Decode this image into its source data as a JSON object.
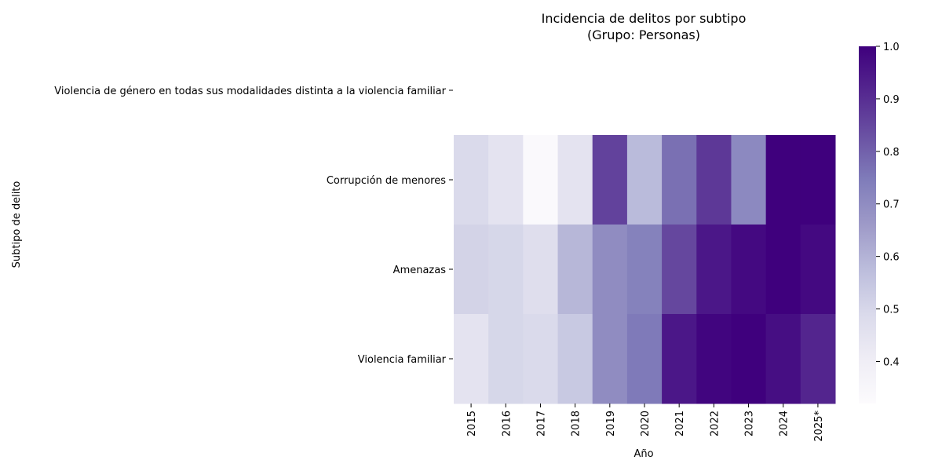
{
  "chart_data": {
    "type": "heatmap",
    "title": "Incidencia de delitos por subtipo",
    "subtitle": "(Grupo: Personas)",
    "xlabel": "Año",
    "ylabel": "Subtipo de delito",
    "x_categories": [
      "2015",
      "2016",
      "2017",
      "2018",
      "2019",
      "2020",
      "2021",
      "2022",
      "2023",
      "2024",
      "2025*"
    ],
    "y_categories": [
      "Violencia de género en todas sus modalidades distinta a la violencia familiar",
      "Corrupción de menores",
      "Amenazas",
      "Violencia familiar"
    ],
    "values": [
      [
        null,
        null,
        null,
        null,
        null,
        null,
        null,
        null,
        null,
        null,
        null
      ],
      [
        0.49,
        0.45,
        0.33,
        0.45,
        0.86,
        0.58,
        0.77,
        0.88,
        0.71,
        1.0,
        1.0
      ],
      [
        0.51,
        0.5,
        0.47,
        0.59,
        0.7,
        0.73,
        0.85,
        0.95,
        0.98,
        1.0,
        0.98
      ],
      [
        0.45,
        0.5,
        0.49,
        0.54,
        0.7,
        0.75,
        0.95,
        0.99,
        1.0,
        0.97,
        0.92
      ]
    ],
    "colorbar": {
      "min": 0.32,
      "max": 1.0,
      "ticks": [
        "0.4",
        "0.5",
        "0.6",
        "0.7",
        "0.8",
        "0.9",
        "1.0"
      ],
      "tick_values": [
        0.4,
        0.5,
        0.6,
        0.7,
        0.8,
        0.9,
        1.0
      ],
      "colormap": "Purples",
      "color_stops": [
        "#fcfbfd",
        "#efedf5",
        "#dadaeb",
        "#bcbddc",
        "#9e9ac8",
        "#807dba",
        "#6a51a3",
        "#54278f",
        "#3f007d"
      ]
    },
    "grid": false,
    "legend": "colorbar-right"
  }
}
